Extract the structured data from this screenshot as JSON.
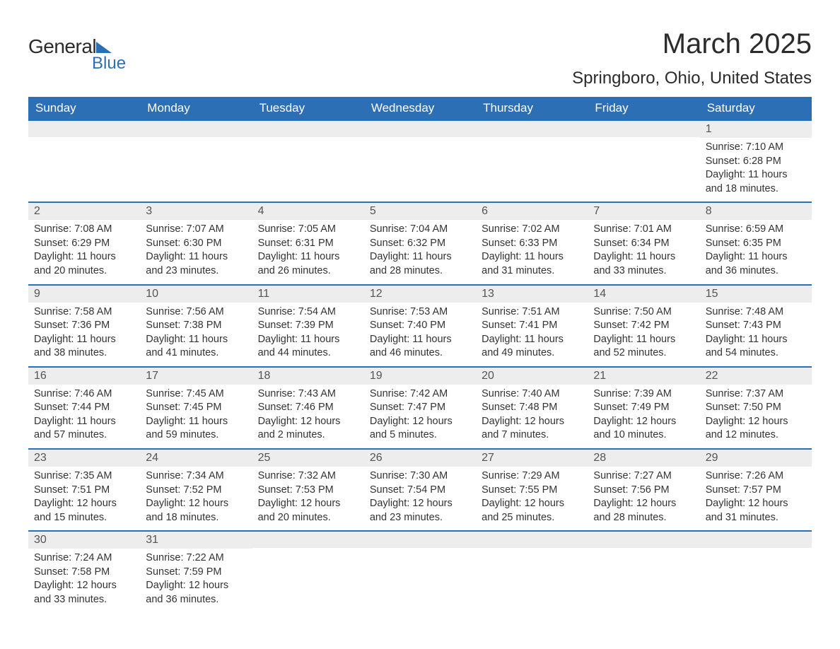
{
  "logo": {
    "general": "General",
    "blue": "Blue"
  },
  "title": "March 2025",
  "location": "Springboro, Ohio, United States",
  "colors": {
    "header_bg": "#2d6fb4",
    "header_text": "#ffffff",
    "daynum_bg": "#ededed",
    "border_top": "#2d6fb4",
    "text": "#333333"
  },
  "layout": {
    "columns": 7,
    "font_family": "Arial",
    "title_fontsize": 40,
    "location_fontsize": 24,
    "header_fontsize": 17,
    "cell_fontsize": 14.5
  },
  "weekdays": [
    "Sunday",
    "Monday",
    "Tuesday",
    "Wednesday",
    "Thursday",
    "Friday",
    "Saturday"
  ],
  "leading_blanks": 6,
  "days": [
    {
      "n": "1",
      "sunrise": "Sunrise: 7:10 AM",
      "sunset": "Sunset: 6:28 PM",
      "daylight": "Daylight: 11 hours and 18 minutes."
    },
    {
      "n": "2",
      "sunrise": "Sunrise: 7:08 AM",
      "sunset": "Sunset: 6:29 PM",
      "daylight": "Daylight: 11 hours and 20 minutes."
    },
    {
      "n": "3",
      "sunrise": "Sunrise: 7:07 AM",
      "sunset": "Sunset: 6:30 PM",
      "daylight": "Daylight: 11 hours and 23 minutes."
    },
    {
      "n": "4",
      "sunrise": "Sunrise: 7:05 AM",
      "sunset": "Sunset: 6:31 PM",
      "daylight": "Daylight: 11 hours and 26 minutes."
    },
    {
      "n": "5",
      "sunrise": "Sunrise: 7:04 AM",
      "sunset": "Sunset: 6:32 PM",
      "daylight": "Daylight: 11 hours and 28 minutes."
    },
    {
      "n": "6",
      "sunrise": "Sunrise: 7:02 AM",
      "sunset": "Sunset: 6:33 PM",
      "daylight": "Daylight: 11 hours and 31 minutes."
    },
    {
      "n": "7",
      "sunrise": "Sunrise: 7:01 AM",
      "sunset": "Sunset: 6:34 PM",
      "daylight": "Daylight: 11 hours and 33 minutes."
    },
    {
      "n": "8",
      "sunrise": "Sunrise: 6:59 AM",
      "sunset": "Sunset: 6:35 PM",
      "daylight": "Daylight: 11 hours and 36 minutes."
    },
    {
      "n": "9",
      "sunrise": "Sunrise: 7:58 AM",
      "sunset": "Sunset: 7:36 PM",
      "daylight": "Daylight: 11 hours and 38 minutes."
    },
    {
      "n": "10",
      "sunrise": "Sunrise: 7:56 AM",
      "sunset": "Sunset: 7:38 PM",
      "daylight": "Daylight: 11 hours and 41 minutes."
    },
    {
      "n": "11",
      "sunrise": "Sunrise: 7:54 AM",
      "sunset": "Sunset: 7:39 PM",
      "daylight": "Daylight: 11 hours and 44 minutes."
    },
    {
      "n": "12",
      "sunrise": "Sunrise: 7:53 AM",
      "sunset": "Sunset: 7:40 PM",
      "daylight": "Daylight: 11 hours and 46 minutes."
    },
    {
      "n": "13",
      "sunrise": "Sunrise: 7:51 AM",
      "sunset": "Sunset: 7:41 PM",
      "daylight": "Daylight: 11 hours and 49 minutes."
    },
    {
      "n": "14",
      "sunrise": "Sunrise: 7:50 AM",
      "sunset": "Sunset: 7:42 PM",
      "daylight": "Daylight: 11 hours and 52 minutes."
    },
    {
      "n": "15",
      "sunrise": "Sunrise: 7:48 AM",
      "sunset": "Sunset: 7:43 PM",
      "daylight": "Daylight: 11 hours and 54 minutes."
    },
    {
      "n": "16",
      "sunrise": "Sunrise: 7:46 AM",
      "sunset": "Sunset: 7:44 PM",
      "daylight": "Daylight: 11 hours and 57 minutes."
    },
    {
      "n": "17",
      "sunrise": "Sunrise: 7:45 AM",
      "sunset": "Sunset: 7:45 PM",
      "daylight": "Daylight: 11 hours and 59 minutes."
    },
    {
      "n": "18",
      "sunrise": "Sunrise: 7:43 AM",
      "sunset": "Sunset: 7:46 PM",
      "daylight": "Daylight: 12 hours and 2 minutes."
    },
    {
      "n": "19",
      "sunrise": "Sunrise: 7:42 AM",
      "sunset": "Sunset: 7:47 PM",
      "daylight": "Daylight: 12 hours and 5 minutes."
    },
    {
      "n": "20",
      "sunrise": "Sunrise: 7:40 AM",
      "sunset": "Sunset: 7:48 PM",
      "daylight": "Daylight: 12 hours and 7 minutes."
    },
    {
      "n": "21",
      "sunrise": "Sunrise: 7:39 AM",
      "sunset": "Sunset: 7:49 PM",
      "daylight": "Daylight: 12 hours and 10 minutes."
    },
    {
      "n": "22",
      "sunrise": "Sunrise: 7:37 AM",
      "sunset": "Sunset: 7:50 PM",
      "daylight": "Daylight: 12 hours and 12 minutes."
    },
    {
      "n": "23",
      "sunrise": "Sunrise: 7:35 AM",
      "sunset": "Sunset: 7:51 PM",
      "daylight": "Daylight: 12 hours and 15 minutes."
    },
    {
      "n": "24",
      "sunrise": "Sunrise: 7:34 AM",
      "sunset": "Sunset: 7:52 PM",
      "daylight": "Daylight: 12 hours and 18 minutes."
    },
    {
      "n": "25",
      "sunrise": "Sunrise: 7:32 AM",
      "sunset": "Sunset: 7:53 PM",
      "daylight": "Daylight: 12 hours and 20 minutes."
    },
    {
      "n": "26",
      "sunrise": "Sunrise: 7:30 AM",
      "sunset": "Sunset: 7:54 PM",
      "daylight": "Daylight: 12 hours and 23 minutes."
    },
    {
      "n": "27",
      "sunrise": "Sunrise: 7:29 AM",
      "sunset": "Sunset: 7:55 PM",
      "daylight": "Daylight: 12 hours and 25 minutes."
    },
    {
      "n": "28",
      "sunrise": "Sunrise: 7:27 AM",
      "sunset": "Sunset: 7:56 PM",
      "daylight": "Daylight: 12 hours and 28 minutes."
    },
    {
      "n": "29",
      "sunrise": "Sunrise: 7:26 AM",
      "sunset": "Sunset: 7:57 PM",
      "daylight": "Daylight: 12 hours and 31 minutes."
    },
    {
      "n": "30",
      "sunrise": "Sunrise: 7:24 AM",
      "sunset": "Sunset: 7:58 PM",
      "daylight": "Daylight: 12 hours and 33 minutes."
    },
    {
      "n": "31",
      "sunrise": "Sunrise: 7:22 AM",
      "sunset": "Sunset: 7:59 PM",
      "daylight": "Daylight: 12 hours and 36 minutes."
    }
  ]
}
